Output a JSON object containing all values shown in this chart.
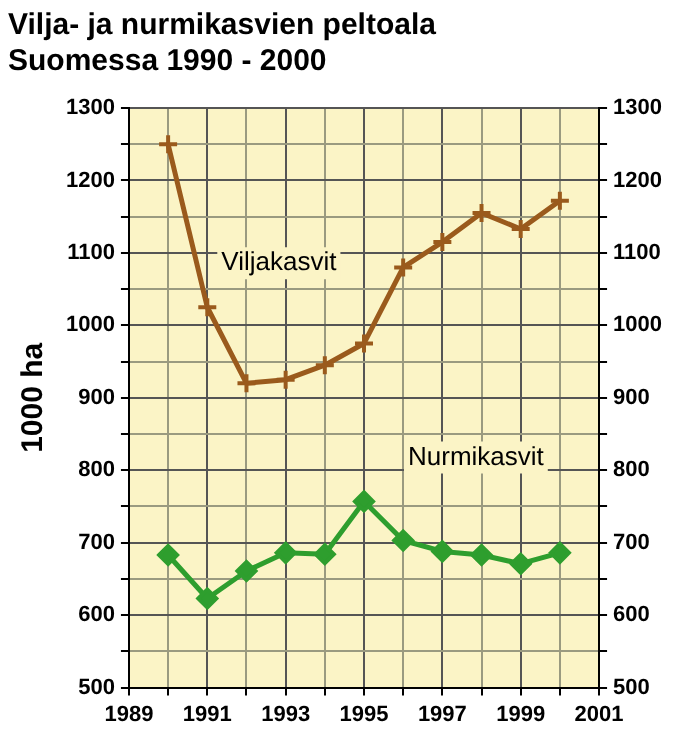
{
  "chart_data": {
    "type": "line",
    "title": "Vilja- ja nurmikasvien peltoala\nSuomessa 1990 - 2000",
    "ylabel": "1000 ha",
    "x": [
      1990,
      1991,
      1992,
      1993,
      1994,
      1995,
      1996,
      1997,
      1998,
      1999,
      2000
    ],
    "series": [
      {
        "name": "Viljakasvit",
        "color": "#9a5a1c",
        "marker": "cross",
        "values": [
          1250,
          1025,
          920,
          925,
          945,
          975,
          1080,
          1115,
          1155,
          1133,
          1172
        ]
      },
      {
        "name": "Nurmikasvit",
        "color": "#2e9e2e",
        "marker": "diamond",
        "values": [
          683,
          623,
          661,
          686,
          684,
          757,
          703,
          688,
          683,
          671,
          686
        ]
      }
    ],
    "xlim": [
      1989,
      2001
    ],
    "xticks": [
      1989,
      {
        "value": 1990,
        "label": null
      },
      1991,
      {
        "value": 1992,
        "label": null
      },
      1993,
      {
        "value": 1994,
        "label": null
      },
      1995,
      {
        "value": 1996,
        "label": null
      },
      1997,
      {
        "value": 1998,
        "label": null
      },
      1999,
      {
        "value": 2000,
        "label": null
      },
      2001
    ],
    "ylim": [
      500,
      1300
    ],
    "yticks": [
      500,
      {
        "value": 550,
        "label": null
      },
      600,
      {
        "value": 650,
        "label": null
      },
      700,
      {
        "value": 750,
        "label": null
      },
      800,
      {
        "value": 850,
        "label": null
      },
      900,
      {
        "value": 950,
        "label": null
      },
      1000,
      {
        "value": 1050,
        "label": null
      },
      1100,
      {
        "value": 1150,
        "label": null
      },
      1200,
      {
        "value": 1250,
        "label": null
      },
      1300
    ],
    "y2lim": [
      500,
      1300
    ],
    "y2ticks": [
      500,
      {
        "value": 550,
        "label": null
      },
      600,
      {
        "value": 650,
        "label": null
      },
      700,
      {
        "value": 750,
        "label": null
      },
      800,
      {
        "value": 850,
        "label": null
      },
      900,
      {
        "value": 950,
        "label": null
      },
      1000,
      {
        "value": 1050,
        "label": null
      },
      1100,
      {
        "value": 1150,
        "label": null
      },
      1200,
      {
        "value": 1250,
        "label": null
      },
      1300
    ],
    "grid": true,
    "legend": false
  }
}
